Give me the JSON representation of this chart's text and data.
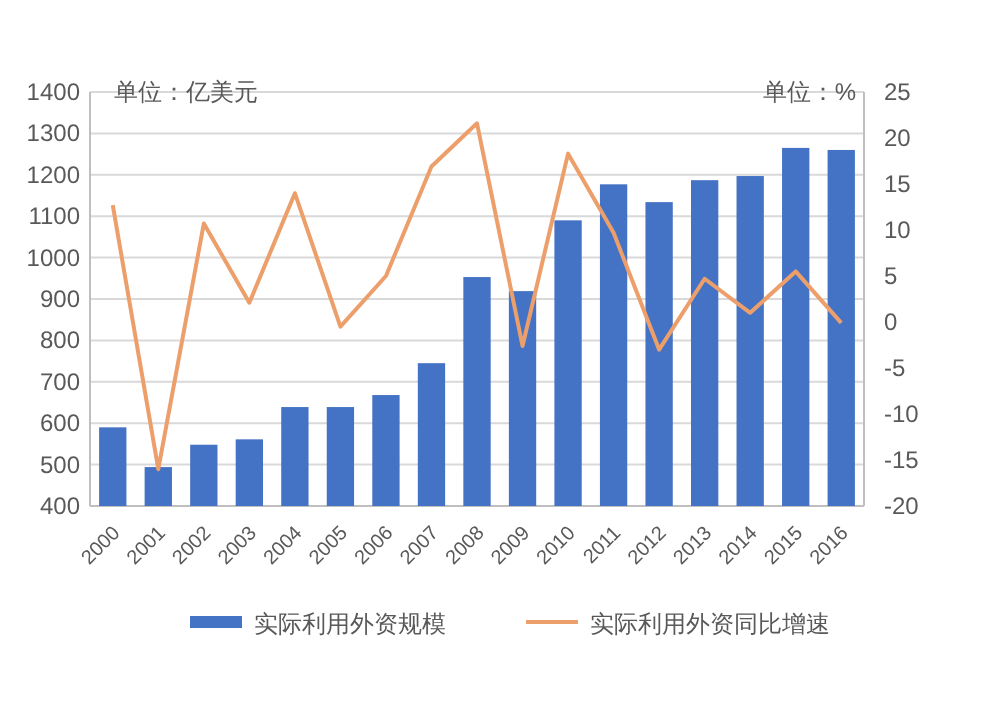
{
  "chart_data": {
    "type": "bar",
    "categories": [
      "2000",
      "2001",
      "2002",
      "2003",
      "2004",
      "2005",
      "2006",
      "2007",
      "2008",
      "2009",
      "2010",
      "2011",
      "2012",
      "2013",
      "2014",
      "2015",
      "2016"
    ],
    "series": [
      {
        "name": "实际利用外资规模",
        "color": "#4472c4",
        "values": [
          590,
          494,
          548,
          561,
          639,
          639,
          668,
          745,
          953,
          919,
          1090,
          1177,
          1134,
          1187,
          1197,
          1265,
          1260
        ]
      },
      {
        "name": "实际利用外资同比增速",
        "type": "line",
        "axis": "y2",
        "color": "#ed9f6b",
        "values": [
          12.7,
          -16,
          10.7,
          2.1,
          14,
          -0.5,
          5,
          16.9,
          21.6,
          -2.6,
          18.3,
          9.7,
          -3,
          4.7,
          1,
          5.5,
          -0.1
        ]
      }
    ],
    "ylim": [
      400,
      1400
    ],
    "yticks": [
      400,
      500,
      600,
      700,
      800,
      900,
      1000,
      1100,
      1200,
      1300,
      1400
    ],
    "y2lim": [
      -20,
      25
    ],
    "y2ticks": [
      -20,
      -15,
      -10,
      -5,
      0,
      5,
      10,
      15,
      20,
      25
    ],
    "annotations": [
      "单位：亿美元",
      "单位：%"
    ],
    "grid": "y",
    "legend": "bottom",
    "marker": "none"
  }
}
